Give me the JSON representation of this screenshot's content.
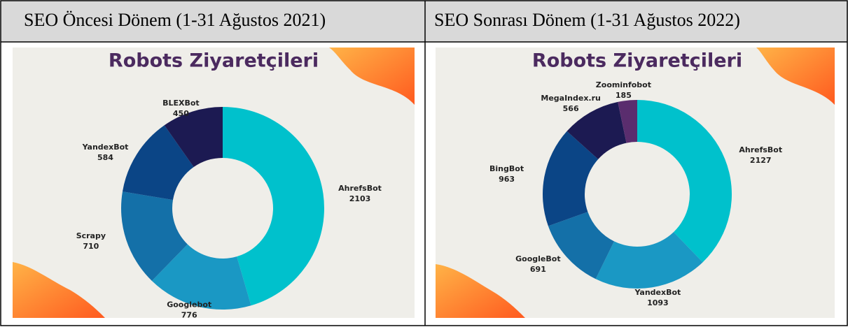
{
  "table": {
    "headers": [
      "SEO Öncesi Dönem (1-31 Ağustos 2021)",
      "SEO Sonrası Dönem (1-31 Ağustos 2022)"
    ]
  },
  "chart_data": [
    {
      "type": "donut",
      "title": "Robots Ziyaretçileri",
      "categories": [
        "AhrefsBot",
        "Googlebot",
        "Scrapy",
        "YandexBot",
        "BLEXBot"
      ],
      "values": [
        2103,
        776,
        710,
        584,
        450
      ],
      "colors": [
        "#00c1cc",
        "#1a98c4",
        "#1470a8",
        "#0b4586",
        "#1c1a52"
      ]
    },
    {
      "type": "donut",
      "title": "Robots Ziyaretçileri",
      "categories": [
        "AhrefsBot",
        "YandexBot",
        "GoogleBot",
        "BingBot",
        "MegaIndex.ru",
        "Zoominfobot"
      ],
      "values": [
        2127,
        1093,
        691,
        963,
        566,
        185
      ],
      "colors": [
        "#00c1cc",
        "#1a98c4",
        "#1470a8",
        "#0b4586",
        "#1c1a52",
        "#5a2d6e"
      ]
    }
  ]
}
